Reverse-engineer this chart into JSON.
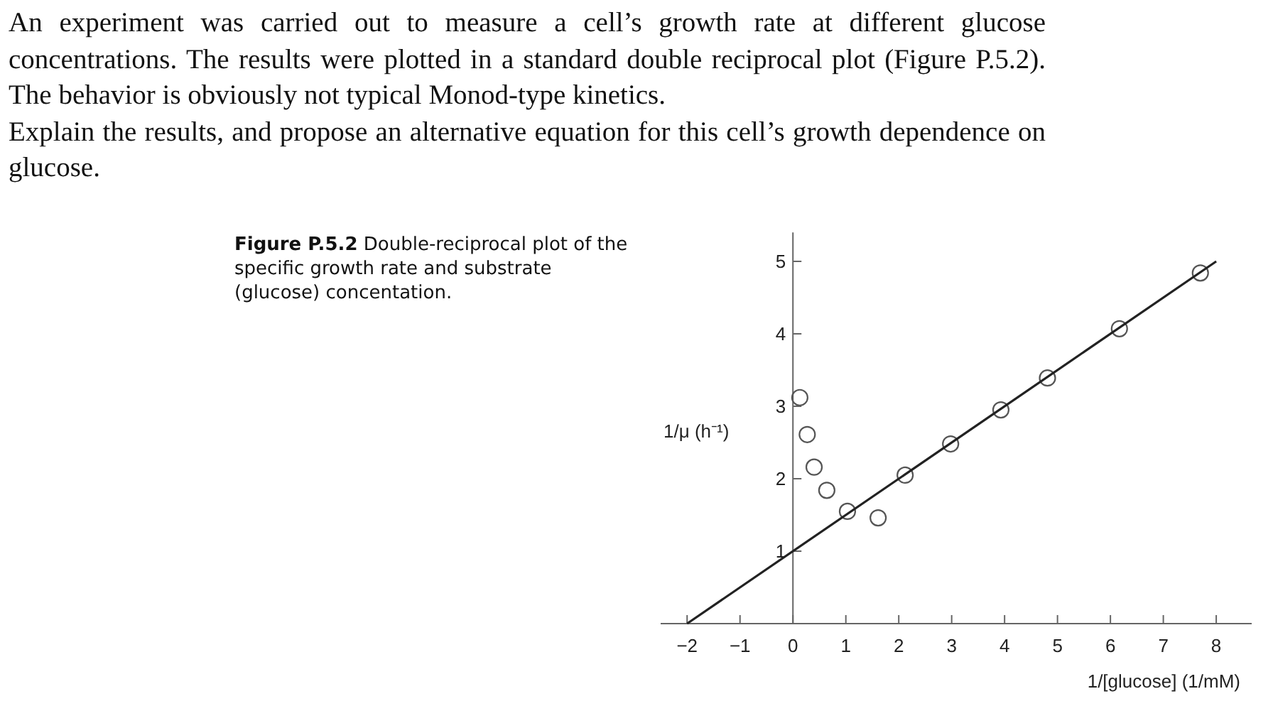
{
  "chart_data": {
    "type": "scatter",
    "xlabel": "1/[glucose] (1/mM)",
    "ylabel": "1/μ (h⁻¹)",
    "annotations": [
      "An experiment was carried out to measure a cell’s growth rate at different glucose concentrations. The results were plotted in a standard double reciprocal plot (Figure P.5.2). The behavior is obviously not typical Monod-type kinetics.",
      "Explain the results, and propose an alternative equation for this cell’s growth dependence on glucose.",
      "Figure P.5.2 Double-reciprocal plot of the specific growth rate and substrate (glucose) concentation."
    ],
    "x": [
      0.13,
      0.27,
      0.4,
      0.64,
      1.03,
      1.61,
      2.12,
      2.98,
      3.93,
      4.81,
      6.17,
      7.7
    ],
    "series": [
      {
        "color": "#555555",
        "values": [
          3.12,
          2.61,
          2.16,
          1.84,
          1.55,
          1.46,
          2.05,
          2.48,
          2.95,
          3.39,
          4.07,
          4.84
        ]
      },
      {
        "type": "line",
        "color": "#222222",
        "x": [
          -2,
          8
        ],
        "values": [
          0,
          5
        ],
        "marker": "none"
      }
    ],
    "marker": "circle",
    "xlim": [
      -2.5,
      8.67
    ],
    "ylim": [
      0,
      5.4
    ],
    "xticks": [
      {
        "value": -2,
        "label": "−2"
      },
      {
        "value": -1,
        "label": "−1"
      },
      0,
      1,
      2,
      3,
      4,
      5,
      6,
      7,
      8
    ],
    "yticks": [
      1,
      2,
      3,
      4,
      5
    ]
  }
}
